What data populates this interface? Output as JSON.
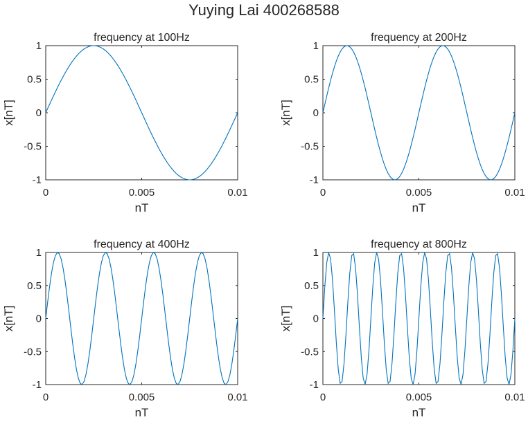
{
  "figure": {
    "suptitle": "Yuying Lai 400268588",
    "line_color": "#0072BD"
  },
  "chart_data": [
    {
      "type": "line",
      "title": "frequency at 100Hz",
      "xlabel": "nT",
      "ylabel": "x[nT]",
      "xlim": [
        0,
        0.01
      ],
      "ylim": [
        -1,
        1
      ],
      "xticks": [
        "0",
        "0.005",
        "0.01"
      ],
      "yticks": [
        "1",
        "0.5",
        "0",
        "-0.5",
        "-1"
      ],
      "signal": "sin(2*pi*f*nT)",
      "frequency_hz": 100,
      "sample_period": 0.0001,
      "grid": false
    },
    {
      "type": "line",
      "title": "frequency at 200Hz",
      "xlabel": "nT",
      "ylabel": "x[nT]",
      "xlim": [
        0,
        0.01
      ],
      "ylim": [
        -1,
        1
      ],
      "xticks": [
        "0",
        "0.005",
        "0.01"
      ],
      "yticks": [
        "1",
        "0.5",
        "0",
        "-0.5",
        "-1"
      ],
      "signal": "sin(2*pi*f*nT)",
      "frequency_hz": 200,
      "sample_period": 0.0001,
      "grid": false
    },
    {
      "type": "line",
      "title": "frequency at 400Hz",
      "xlabel": "nT",
      "ylabel": "x[nT]",
      "xlim": [
        0,
        0.01
      ],
      "ylim": [
        -1,
        1
      ],
      "xticks": [
        "0",
        "0.005",
        "0.01"
      ],
      "yticks": [
        "1",
        "0.5",
        "0",
        "-0.5",
        "-1"
      ],
      "signal": "sin(2*pi*f*nT)",
      "frequency_hz": 400,
      "sample_period": 0.0001,
      "grid": false
    },
    {
      "type": "line",
      "title": "frequency at 800Hz",
      "xlabel": "nT",
      "ylabel": "x[nT]",
      "xlim": [
        0,
        0.01
      ],
      "ylim": [
        -1,
        1
      ],
      "xticks": [
        "0",
        "0.005",
        "0.01"
      ],
      "yticks": [
        "1",
        "0.5",
        "0",
        "-0.5",
        "-1"
      ],
      "signal": "sin(2*pi*f*nT)",
      "frequency_hz": 800,
      "sample_period": 0.0001,
      "grid": false
    }
  ]
}
